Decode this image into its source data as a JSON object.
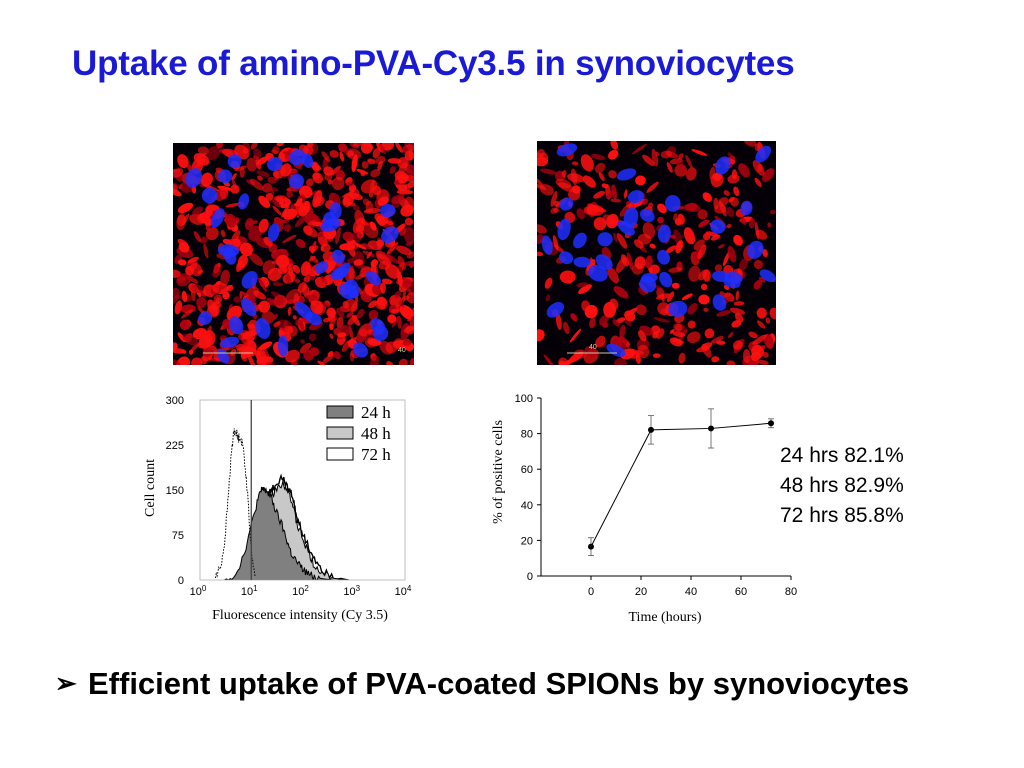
{
  "title": "Uptake of amino-PVA-Cy3.5 in synoviocytes",
  "micrographs": [
    {
      "name": "micrograph-24h",
      "scale_label": "40"
    },
    {
      "name": "micrograph-72h",
      "scale_label": "40"
    }
  ],
  "colors": {
    "title": "#1a1ad6",
    "nuclei": "#1f2fff",
    "cy35_signal": "#ff1010",
    "fill_24h": "#808080",
    "fill_48h": "#c8c8c8"
  },
  "chart_data": [
    {
      "type": "area",
      "xlabel": "Fluorescence intensity (Cy 3.5)",
      "ylabel": "Cell count",
      "x_scale": "log",
      "xlim": [
        1,
        10000
      ],
      "ylim": [
        0,
        300
      ],
      "y_ticks": [
        "0",
        "75",
        "150",
        "225",
        "300"
      ],
      "x_ticks": [
        {
          "base": "10",
          "exp": "0"
        },
        {
          "base": "10",
          "exp": "1"
        },
        {
          "base": "10",
          "exp": "2"
        },
        {
          "base": "10",
          "exp": "3"
        },
        {
          "base": "10",
          "exp": "4"
        }
      ],
      "legend_position": "top-right",
      "marker_line_x": 10,
      "control_trace": {
        "x": [
          2,
          2.5,
          3,
          3.5,
          4,
          4.5,
          5,
          5.5,
          6,
          7,
          8,
          9,
          10,
          12
        ],
        "y": [
          5,
          20,
          60,
          130,
          200,
          245,
          250,
          235,
          240,
          220,
          170,
          110,
          50,
          5
        ]
      },
      "series": [
        {
          "name": "24 h",
          "fill": "#808080",
          "x": [
            3,
            5,
            7,
            10,
            13,
            16,
            20,
            25,
            30,
            40,
            50,
            60,
            80,
            100,
            130,
            170,
            250,
            400
          ],
          "y": [
            0,
            10,
            40,
            90,
            130,
            150,
            148,
            135,
            115,
            90,
            65,
            45,
            28,
            18,
            10,
            5,
            2,
            0
          ]
        },
        {
          "name": "48 h",
          "fill": "#c8c8c8",
          "x": [
            4,
            6,
            8,
            10,
            13,
            16,
            20,
            25,
            30,
            40,
            50,
            60,
            70,
            80,
            100,
            130,
            170,
            250,
            400,
            700
          ],
          "y": [
            0,
            10,
            40,
            80,
            120,
            150,
            140,
            142,
            150,
            162,
            155,
            135,
            110,
            90,
            70,
            45,
            25,
            10,
            3,
            0
          ]
        },
        {
          "name": "72 h",
          "fill": "#ffffff",
          "x": [
            5,
            8,
            10,
            13,
            16,
            20,
            25,
            30,
            40,
            50,
            60,
            70,
            80,
            100,
            130,
            170,
            250,
            400,
            800
          ],
          "y": [
            0,
            20,
            60,
            110,
            150,
            145,
            148,
            160,
            168,
            160,
            145,
            120,
            100,
            80,
            55,
            35,
            15,
            5,
            0
          ]
        }
      ]
    },
    {
      "type": "line",
      "xlabel": "Time (hours)",
      "ylabel": "% of positive cells",
      "xlim": [
        -20,
        80
      ],
      "ylim": [
        0,
        100
      ],
      "x_ticks": [
        "0",
        "20",
        "40",
        "60",
        "80"
      ],
      "y_ticks": [
        "0",
        "20",
        "40",
        "60",
        "80",
        "100"
      ],
      "x": [
        0,
        24,
        48,
        72
      ],
      "y": [
        16.5,
        82.1,
        82.9,
        85.8
      ],
      "error": [
        5,
        8,
        11,
        2.5
      ]
    }
  ],
  "stats": [
    "24 hrs 82.1%",
    "48 hrs 82.9%",
    "72 hrs 85.8%"
  ],
  "conclusion": {
    "bullet": "➢",
    "text": "Efficient uptake of PVA-coated SPIONs by synoviocytes"
  }
}
